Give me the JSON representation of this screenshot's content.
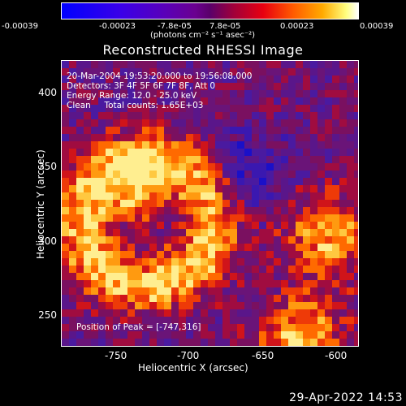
{
  "colorbar": {
    "ticks": [
      "-0.00039",
      "-0.00023",
      "-7.8e-05",
      "7.8e-05",
      "0.00023",
      "0.00039"
    ],
    "unit": "(photons cm⁻² s⁻¹ asec⁻²)"
  },
  "title": "Reconstructed RHESSI Image",
  "info": {
    "time": "20-Mar-2004 19:53:20.000 to 19:56:08.000",
    "detectors": "Detectors: 3F 4F 5F 6F 7F 8F, Att 0",
    "energy": "Energy Range: 12.0 - 25.0 keV",
    "clean": "Clean     Total counts: 1.65E+03",
    "peak": "Position of Peak = [-747,316]"
  },
  "axes": {
    "x_ticks": [
      "-750",
      "-700",
      "-650",
      "-600"
    ],
    "y_ticks": [
      "400",
      "350",
      "300",
      "250"
    ],
    "xlabel": "Heliocentric X (arcsec)",
    "ylabel": "Heliocentric Y (arcsec)"
  },
  "footer_date": "29-Apr-2022 14:53",
  "colors": {
    "background": "#000000",
    "low": "#0000ff",
    "mid": "#6a0090",
    "high": "#ff5a00",
    "peak": "#ffffff"
  }
}
